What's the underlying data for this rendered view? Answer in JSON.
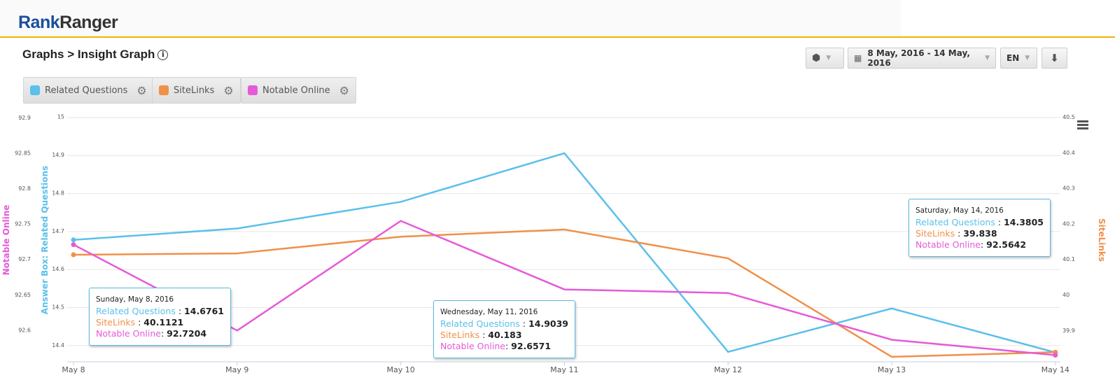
{
  "header": {
    "logo_part1": "Rank",
    "logo_part2": "Ranger"
  },
  "page": {
    "title": "Graphs > Insight Graph",
    "info_icon": "info-icon"
  },
  "toolbar": {
    "cube_icon": "cube-icon",
    "date_range": "8 May, 2016 - 14 May, 2016",
    "language": "EN",
    "download_icon": "download-icon"
  },
  "legend": [
    {
      "label": "Related Questions",
      "color": "#5bc0eb"
    },
    {
      "label": "SiteLinks",
      "color": "#f0904a"
    },
    {
      "label": "Notable Online",
      "color": "#e55ad8"
    }
  ],
  "chart_data": {
    "type": "line",
    "categories": [
      "May 8",
      "May 9",
      "May 10",
      "May 11",
      "May 12",
      "May 13",
      "May 14"
    ],
    "axes": [
      {
        "title": "Notable Online",
        "side": "left-outer",
        "ticks": [
          "92.9",
          "92.85",
          "92.8",
          "92.75",
          "92.7",
          "92.65",
          "92.6"
        ]
      },
      {
        "title": "Answer Box: Related Questions",
        "side": "left",
        "ticks": [
          "15",
          "14.9",
          "14.8",
          "14.7",
          "14.6",
          "14.5",
          "14.4"
        ],
        "range": [
          14.4,
          15
        ]
      },
      {
        "title": "SiteLinks",
        "side": "right",
        "ticks": [
          "40.5",
          "40.4",
          "40.3",
          "40.2",
          "40.1",
          "40",
          "39.9"
        ]
      }
    ],
    "series": [
      {
        "name": "Related Questions",
        "axis": 1,
        "color": "#5bc0eb",
        "values": [
          14.6761,
          14.706,
          14.776,
          14.9039,
          14.382,
          14.496,
          14.3805
        ]
      },
      {
        "name": "SiteLinks",
        "axis": 2,
        "color": "#f0904a",
        "values": [
          40.1121,
          40.116,
          40.163,
          40.183,
          40.102,
          39.825,
          39.838
        ]
      },
      {
        "name": "Notable Online",
        "axis": 0,
        "color": "#e55ad8",
        "values": [
          92.7204,
          92.599,
          92.754,
          92.6571,
          92.652,
          92.586,
          92.5642
        ]
      }
    ],
    "grid": true,
    "tooltips": [
      {
        "date": "Sunday, May 8, 2016",
        "rq_label": "Related Questions",
        "rq": "14.6761",
        "sl_label": "SiteLinks",
        "sl": "40.1121",
        "no_label": "Notable Online",
        "no": "92.7204"
      },
      {
        "date": "Wednesday, May 11, 2016",
        "rq_label": "Related Questions",
        "rq": "14.9039",
        "sl_label": "SiteLinks",
        "sl": "40.183",
        "no_label": "Notable Online",
        "no": "92.6571"
      },
      {
        "date": "Saturday, May 14, 2016",
        "rq_label": "Related Questions",
        "rq": "14.3805",
        "sl_label": "SiteLinks",
        "sl": "39.838",
        "no_label": "Notable Online",
        "no": "92.5642"
      }
    ]
  }
}
